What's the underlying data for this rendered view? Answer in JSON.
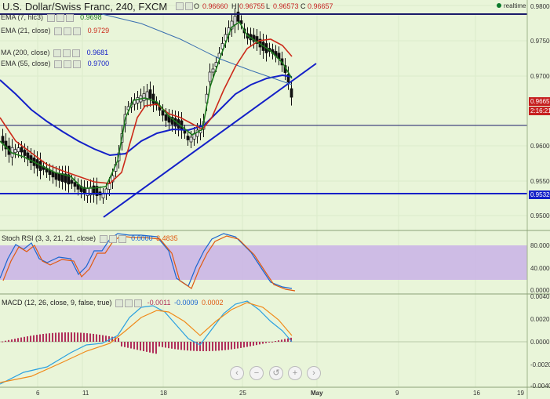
{
  "header": {
    "title": "U.S. Dollar/Swiss Franc, 240, FXCM",
    "open_label": "O",
    "open_value": "0.96660",
    "high_label": "H",
    "high_value": "0.96755",
    "low_label": "L",
    "low_value": "0.96573",
    "close_label": "C",
    "close_value": "0.96657",
    "realtime": "realtime"
  },
  "legend": {
    "ema7": {
      "label": "EMA (7, hlc3)",
      "value": "0.9698"
    },
    "ema21": {
      "label": "EMA (21, close)",
      "value": "0.9729"
    },
    "ma200": {
      "label": "MA (200, close)",
      "value": "0.9681"
    },
    "ema55": {
      "label": "EMA (55, close)",
      "value": "0.9700"
    }
  },
  "price_axis": {
    "ticks": [
      "0.98000",
      "0.97500",
      "0.97000",
      "0.96000",
      "0.95500",
      "0.95000"
    ],
    "last_price": "0.96657",
    "countdown": "2:16:21",
    "support_price": "0.95320"
  },
  "stoch": {
    "label": "Stoch RSI (3, 3, 21, 21, close)",
    "k_value": "0.0000",
    "d_value": "3.4835",
    "ticks": [
      "80.0000",
      "40.0000",
      "0.0000"
    ]
  },
  "macd": {
    "label": "MACD (12, 26, close, 9, false, true)",
    "hist_value": "-0.0011",
    "macd_value": "-0.0009",
    "signal_value": "0.0002",
    "ticks": [
      "0.0040",
      "0.0020",
      "0.0000",
      "-0.0020",
      "-0.0040"
    ]
  },
  "time_axis": [
    "6",
    "11",
    "18",
    "25",
    "May",
    "9",
    "16",
    "19"
  ],
  "nav": {
    "zoom_out": "−",
    "zoom_in": "+",
    "reset": "↺",
    "left": "‹",
    "right": "›"
  },
  "colors": {
    "background": "#e9f5d9",
    "ema7": "#1e7a1e",
    "ema21": "#cc2a1a",
    "ema55": "#1420c8",
    "ma200": "#3a6fb0",
    "stoch_band": "#c9b2e6",
    "macd_line": "#2aa0e0",
    "signal_line": "#f08a1a",
    "hist": "#b0305a"
  }
}
